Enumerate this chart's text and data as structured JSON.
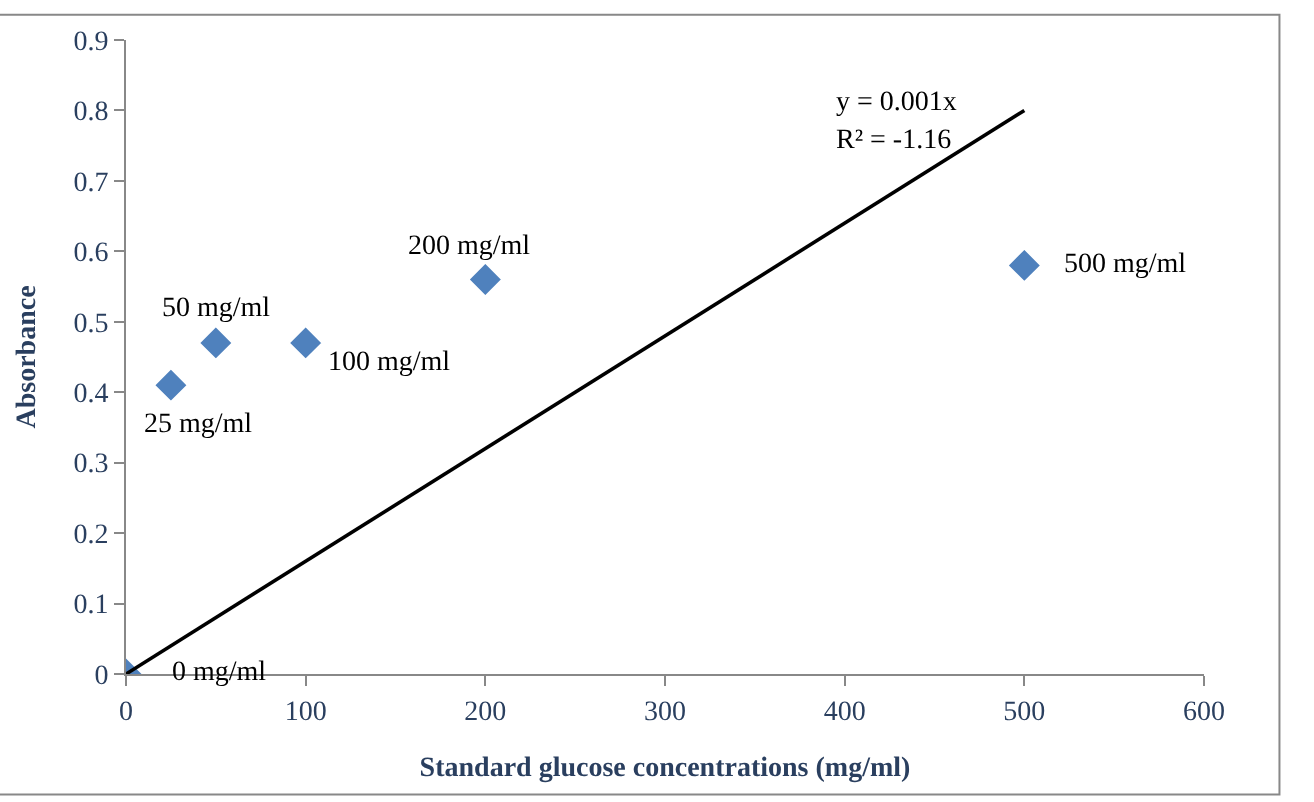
{
  "chart_data": {
    "type": "scatter",
    "xlabel": "Standard glucose concentrations (mg/ml)",
    "ylabel": "Absorbance",
    "x": [
      0,
      25,
      50,
      100,
      200,
      500
    ],
    "series": [
      {
        "color": "#4f81bd",
        "values": [
          0,
          0.41,
          0.47,
          0.47,
          0.56,
          0.58
        ],
        "marker": "diamond"
      },
      {
        "type": "line",
        "color": "#000000",
        "x": [
          0,
          500
        ],
        "values": [
          0,
          0.8
        ],
        "marker": "none",
        "line_style": "solid"
      }
    ],
    "annotations": [
      {
        "text": "0 mg/ml",
        "x": 0,
        "y": 0
      },
      {
        "text": "25 mg/ml",
        "x": 25,
        "y": 0.41
      },
      {
        "text": "50 mg/ml",
        "x": 50,
        "y": 0.47
      },
      {
        "text": "100 mg/ml",
        "x": 100,
        "y": 0.47
      },
      {
        "text": "200 mg/ml",
        "x": 200,
        "y": 0.56
      },
      {
        "text": "500 mg/ml",
        "x": 500,
        "y": 0.58
      },
      "y = 0.001x",
      "R² = -1.16"
    ],
    "xlim": [
      0,
      600
    ],
    "xticks": [
      0,
      100,
      200,
      300,
      400,
      500,
      600
    ],
    "ylim": [
      0,
      0.9
    ],
    "yticks": [
      0,
      0.1,
      0.2,
      0.3,
      0.4,
      0.5,
      0.6,
      0.7,
      0.8,
      0.9
    ]
  }
}
